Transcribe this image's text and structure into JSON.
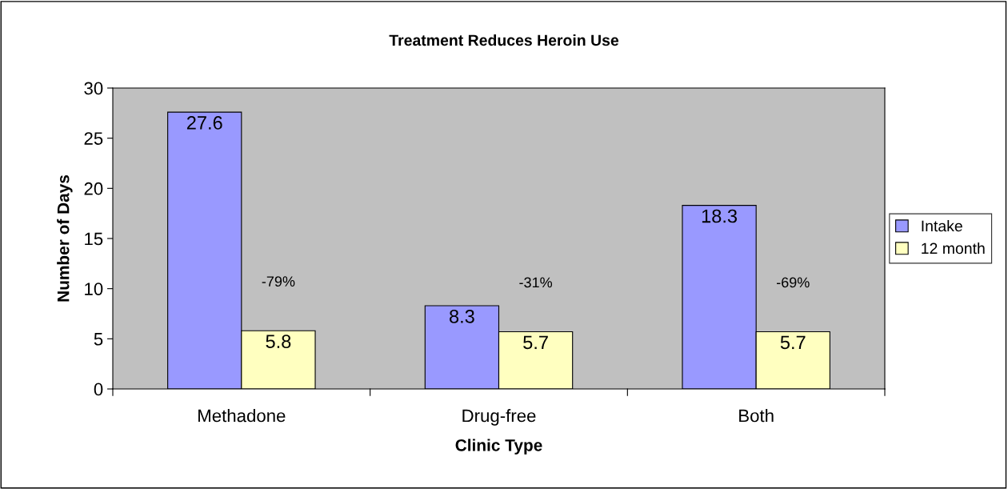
{
  "chart_data": {
    "type": "bar",
    "title": "Treatment Reduces Heroin Use",
    "xlabel": "Clinic Type",
    "ylabel": "Number of Days",
    "categories": [
      "Methadone",
      "Drug-free",
      "Both"
    ],
    "series": [
      {
        "name": "Intake",
        "color": "#9999ff",
        "values": [
          27.6,
          8.3,
          18.3
        ]
      },
      {
        "name": "12 month",
        "color": "#ffffc0",
        "values": [
          5.8,
          5.7,
          5.7
        ]
      }
    ],
    "data_labels": true,
    "ylim": [
      0,
      30
    ],
    "yticks": [
      0,
      5,
      10,
      15,
      20,
      25,
      30
    ],
    "grid": false,
    "legend": "right",
    "annotations": [
      "-79%",
      "-31%",
      "-69%"
    ]
  }
}
